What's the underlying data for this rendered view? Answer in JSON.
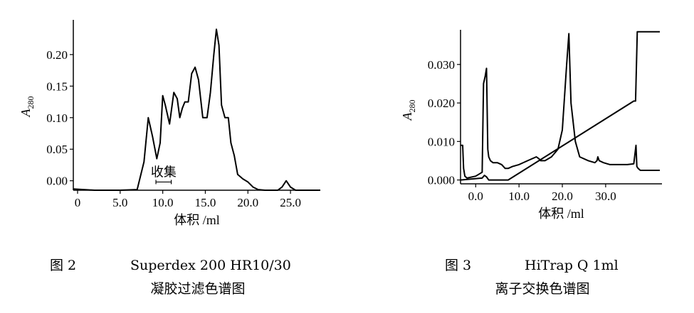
{
  "chart_data": [
    {
      "type": "line",
      "figure_label": "图 2",
      "caption_line1": "Superdex 200 HR10/30",
      "caption_line2": "凝胶过滤色谱图",
      "xlabel": "体积 /ml",
      "ylabel": "A",
      "ylabel_sub": "280",
      "xlim": [
        -0.5,
        28.5
      ],
      "ylim": [
        -0.015,
        0.255
      ],
      "x_ticks": [
        0,
        5,
        10,
        15,
        20,
        25
      ],
      "x_tick_labels": [
        "0",
        "5.0",
        "10.0",
        "15.0",
        "20.0",
        "25.0"
      ],
      "y_ticks": [
        0.0,
        0.05,
        0.1,
        0.15,
        0.2
      ],
      "y_tick_labels": [
        "0.00",
        "0.05",
        "0.10",
        "0.15",
        "0.20"
      ],
      "annotation": {
        "text": "收集",
        "x_range": [
          9.2,
          11.0
        ]
      },
      "series": [
        {
          "x": [
            -0.5,
            2,
            5,
            7,
            7.8,
            8.3,
            8.8,
            9.3,
            9.7,
            10.0,
            10.3,
            10.8,
            11.3,
            11.7,
            12.0,
            12.3,
            12.6,
            13.0,
            13.4,
            13.8,
            14.2,
            14.7,
            15.2,
            15.6,
            16.0,
            16.3,
            16.6,
            16.9,
            17.3,
            17.7,
            18.0,
            18.4,
            18.8,
            19.4,
            20.0,
            20.6,
            21.2,
            22.0,
            23.5,
            24.0,
            24.5,
            25.0,
            25.6,
            27.0,
            28.5
          ],
          "y": [
            -0.013,
            -0.015,
            -0.015,
            -0.014,
            0.03,
            0.1,
            0.07,
            0.035,
            0.06,
            0.135,
            0.12,
            0.09,
            0.14,
            0.13,
            0.1,
            0.115,
            0.125,
            0.125,
            0.17,
            0.18,
            0.16,
            0.1,
            0.1,
            0.14,
            0.2,
            0.24,
            0.215,
            0.12,
            0.1,
            0.1,
            0.06,
            0.04,
            0.01,
            0.003,
            -0.002,
            -0.01,
            -0.014,
            -0.015,
            -0.015,
            -0.01,
            0.0,
            -0.01,
            -0.015,
            -0.015,
            -0.015
          ]
        }
      ]
    },
    {
      "type": "line",
      "figure_label": "图 3",
      "caption_line1": "HiTrap Q 1ml",
      "caption_line2": "离子交换色谱图",
      "xlabel": "体积 /ml",
      "ylabel": "A",
      "ylabel_sub": "280",
      "xlim": [
        -3.5,
        43
      ],
      "ylim": [
        -0.001,
        0.039
      ],
      "x_ticks": [
        0,
        10,
        20,
        30
      ],
      "x_tick_labels": [
        "0.0",
        "10.0",
        "20.0",
        "30.0"
      ],
      "y_ticks": [
        0.0,
        0.01,
        0.02,
        0.03
      ],
      "y_tick_labels": [
        "0.000",
        "0.010",
        "0.020",
        "0.030"
      ],
      "series": [
        {
          "x": [
            -3.5,
            -3.0,
            -2.8,
            -2.5,
            -2.0,
            0,
            1.5,
            1.8,
            2.2,
            2.5,
            2.8,
            3.0,
            3.4,
            4.0,
            5.0,
            6.0,
            6.8,
            7.5,
            8.5,
            10.0,
            12.0,
            14.0,
            14.6,
            15.0,
            15.4,
            16.0,
            17.5,
            19.0,
            20.0,
            21.0,
            21.5,
            22.0,
            23.0,
            24.0,
            26.0,
            27.5,
            28.0,
            28.2,
            28.5,
            29.5,
            31.0,
            33.0,
            35.0,
            36.5,
            37.0,
            37.2,
            37.5,
            38.0,
            39.0,
            42.5
          ],
          "y": [
            0.009,
            0.009,
            0.003,
            0.001,
            0.0005,
            0.001,
            0.002,
            0.025,
            0.027,
            0.029,
            0.008,
            0.006,
            0.005,
            0.0045,
            0.0045,
            0.004,
            0.003,
            0.003,
            0.0035,
            0.004,
            0.005,
            0.006,
            0.0055,
            0.005,
            0.005,
            0.005,
            0.006,
            0.008,
            0.013,
            0.03,
            0.038,
            0.02,
            0.01,
            0.006,
            0.005,
            0.0045,
            0.005,
            0.006,
            0.005,
            0.0045,
            0.004,
            0.004,
            0.004,
            0.0042,
            0.009,
            0.0035,
            0.003,
            0.0025,
            0.0025,
            0.0025
          ]
        },
        {
          "x": [
            -3.5,
            1.5,
            2.0,
            2.5,
            3.0,
            7.5,
            36.5,
            36.9,
            37.3,
            42.5
          ],
          "y": [
            0.0,
            0.0005,
            0.0012,
            0.0008,
            0.0,
            0.0,
            0.0205,
            0.0205,
            0.0385,
            0.0385
          ]
        }
      ]
    }
  ]
}
